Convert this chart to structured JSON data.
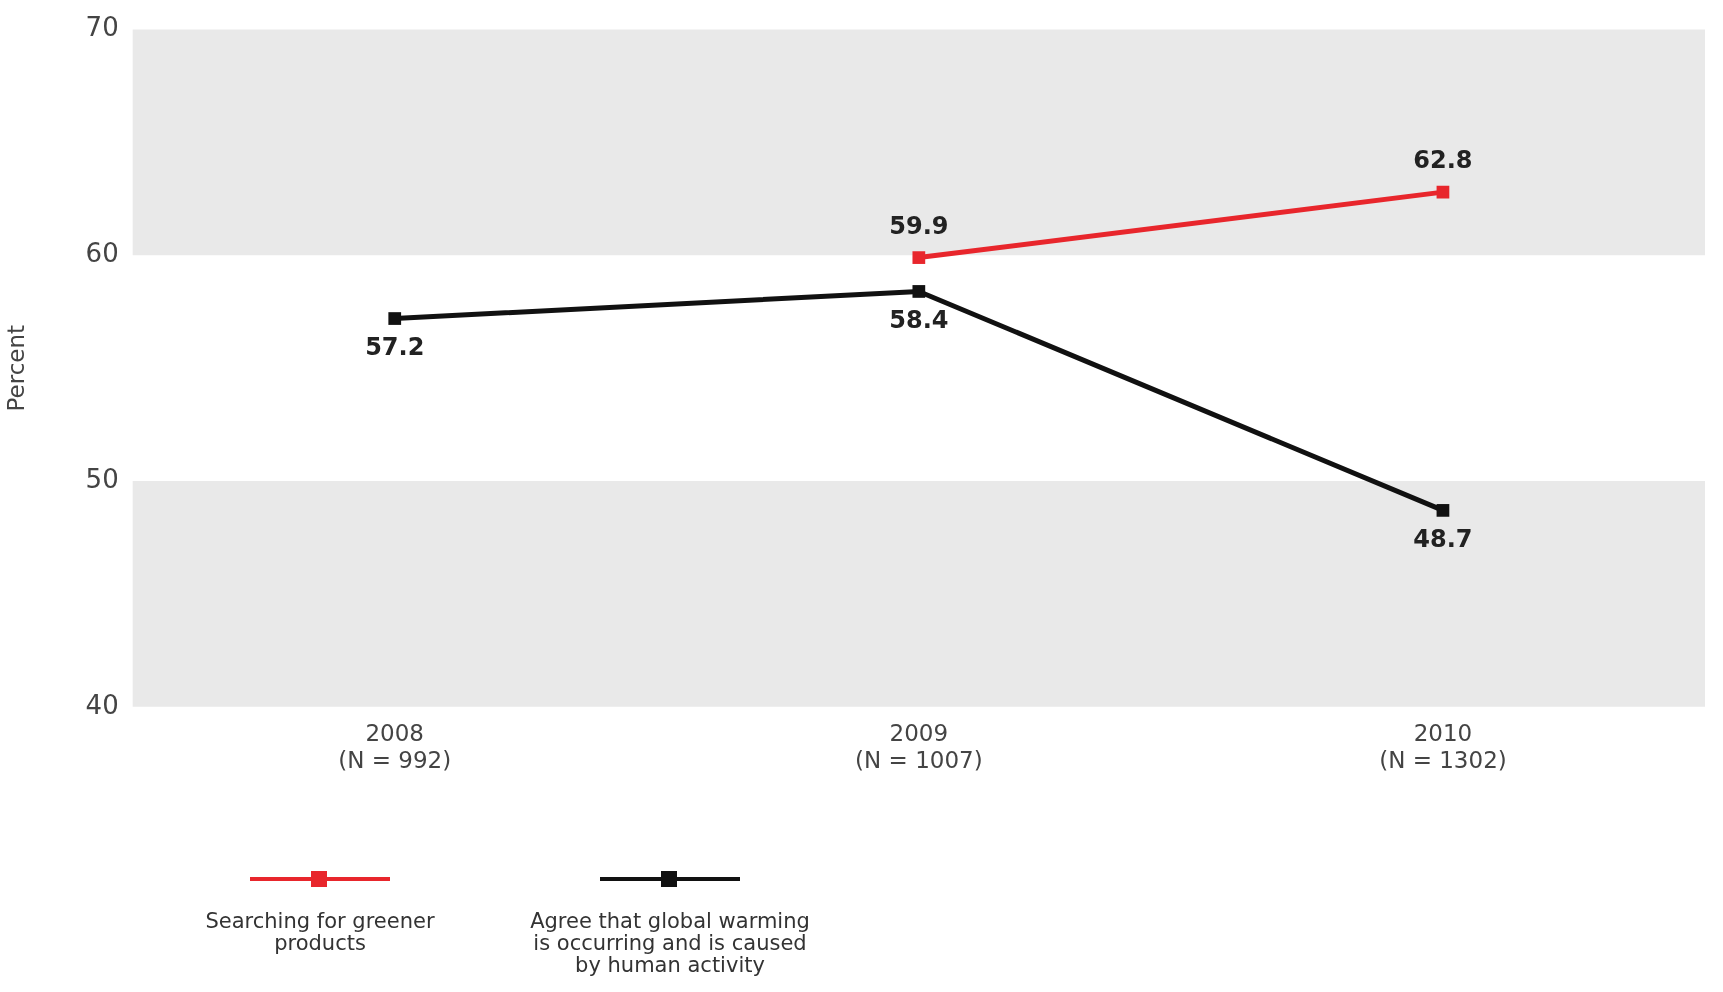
{
  "chart_data": {
    "type": "line",
    "ylabel": "Percent",
    "categories": [
      "2008\n(N = 992)",
      "2009\n(N = 1007)",
      "2010\n(N = 1302)"
    ],
    "series": [
      {
        "name": "Searching for greener products",
        "color": "#e8262c",
        "values": [
          null,
          59.9,
          62.8
        ]
      },
      {
        "name": "Agree that global warming is occurring and is caused by human activity",
        "color": "#111111",
        "values": [
          57.2,
          58.4,
          48.7
        ]
      }
    ],
    "ylim": [
      40,
      70
    ],
    "yticks": [
      40,
      50,
      60,
      70
    ],
    "bands": [
      {
        "axis": "y",
        "from": 60,
        "to": 70,
        "color": "#e9e9e9"
      },
      {
        "axis": "y",
        "from": 40,
        "to": 50,
        "color": "#e9e9e9"
      }
    ],
    "grid": false,
    "legend": "bottom left",
    "marker": "square",
    "line_style": "solid",
    "data_labels": true
  }
}
